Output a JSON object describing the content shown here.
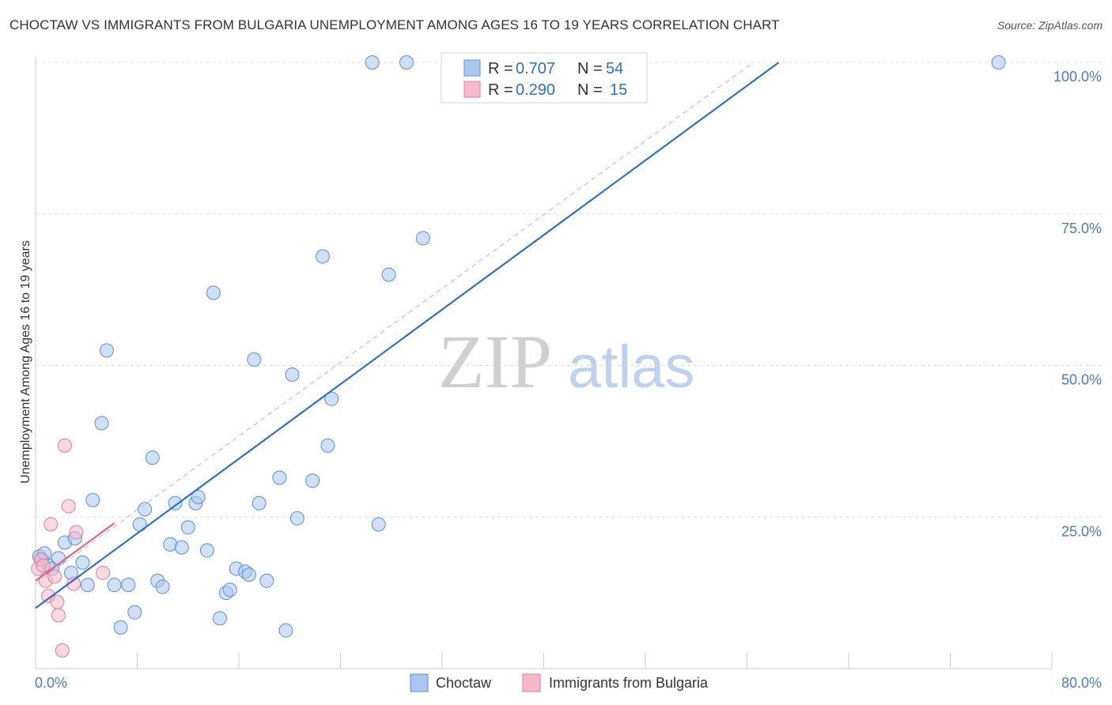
{
  "title": "CHOCTAW VS IMMIGRANTS FROM BULGARIA UNEMPLOYMENT AMONG AGES 16 TO 19 YEARS CORRELATION CHART",
  "source": "Source: ZipAtlas.com",
  "watermark": {
    "zip": "ZIP",
    "atlas": "atlas"
  },
  "legend": {
    "rows": [
      {
        "r_label": "R =",
        "r_value": "0.707",
        "n_label": "N =",
        "n_value": "54"
      },
      {
        "r_label": "R =",
        "r_value": "0.290",
        "n_label": "N =",
        "n_value": "15"
      }
    ]
  },
  "chart_data": {
    "type": "scatter",
    "title": "CHOCTAW VS IMMIGRANTS FROM BULGARIA UNEMPLOYMENT AMONG AGES 16 TO 19 YEARS CORRELATION CHART",
    "xlabel": "",
    "ylabel": "Unemployment Among Ages 16 to 19 years",
    "xlim": [
      0,
      80
    ],
    "ylim": [
      0,
      100
    ],
    "x_tick_labels": [
      "0.0%",
      "80.0%"
    ],
    "y_ticks": [
      25,
      50,
      75,
      100
    ],
    "y_tick_labels": [
      "25.0%",
      "50.0%",
      "75.0%",
      "100.0%"
    ],
    "colors": {
      "choctaw_fill": "#a9c8f0",
      "choctaw_stroke": "#5b8fd6",
      "choctaw_line": "#2f6fcc",
      "bulgaria_fill": "#f7b8ca",
      "bulgaria_stroke": "#e27c9c",
      "bulgaria_line": "#e0628d",
      "axis_label": "#4a7cc4"
    },
    "series": [
      {
        "name": "Choctaw",
        "r": 0.707,
        "n": 54,
        "trend": {
          "x0": 0,
          "y0": 10,
          "x1": 58.5,
          "y1": 100
        },
        "points": [
          [
            0.3,
            18.5
          ],
          [
            0.5,
            18.0
          ],
          [
            0.7,
            19.0
          ],
          [
            1.0,
            17.0
          ],
          [
            1.3,
            16.5
          ],
          [
            1.8,
            18.2
          ],
          [
            2.3,
            20.8
          ],
          [
            2.8,
            15.8
          ],
          [
            3.1,
            21.5
          ],
          [
            3.7,
            17.5
          ],
          [
            4.1,
            13.8
          ],
          [
            4.5,
            27.8
          ],
          [
            5.2,
            40.5
          ],
          [
            5.6,
            52.5
          ],
          [
            6.2,
            13.8
          ],
          [
            6.7,
            6.8
          ],
          [
            7.3,
            13.8
          ],
          [
            7.8,
            9.3
          ],
          [
            8.2,
            23.8
          ],
          [
            8.6,
            26.3
          ],
          [
            9.2,
            34.8
          ],
          [
            9.6,
            14.5
          ],
          [
            10.0,
            13.5
          ],
          [
            10.6,
            20.5
          ],
          [
            11.0,
            27.3
          ],
          [
            11.5,
            20.0
          ],
          [
            12.0,
            23.3
          ],
          [
            12.6,
            27.3
          ],
          [
            12.8,
            28.3
          ],
          [
            13.5,
            19.5
          ],
          [
            14.0,
            62.0
          ],
          [
            14.5,
            8.3
          ],
          [
            15.0,
            12.5
          ],
          [
            15.3,
            13.0
          ],
          [
            15.8,
            16.5
          ],
          [
            16.5,
            16.0
          ],
          [
            16.8,
            15.5
          ],
          [
            17.2,
            51.0
          ],
          [
            17.6,
            27.3
          ],
          [
            18.2,
            14.5
          ],
          [
            19.2,
            31.5
          ],
          [
            19.7,
            6.3
          ],
          [
            20.2,
            48.5
          ],
          [
            20.6,
            24.8
          ],
          [
            21.8,
            31.0
          ],
          [
            22.6,
            68.0
          ],
          [
            23.0,
            36.8
          ],
          [
            23.3,
            44.5
          ],
          [
            26.5,
            100.0
          ],
          [
            27.0,
            23.8
          ],
          [
            27.8,
            65.0
          ],
          [
            29.2,
            100.0
          ],
          [
            30.5,
            71.0
          ],
          [
            75.8,
            100.0
          ]
        ]
      },
      {
        "name": "Immigrants from Bulgaria",
        "r": 0.29,
        "n": 15,
        "trend": {
          "x0": 0,
          "y0": 14.5,
          "x1": 6.2,
          "y1": 24.0
        },
        "points": [
          [
            0.2,
            16.5
          ],
          [
            0.4,
            18.0
          ],
          [
            0.6,
            17.0
          ],
          [
            0.8,
            14.5
          ],
          [
            1.0,
            12.0
          ],
          [
            1.2,
            23.8
          ],
          [
            1.5,
            15.2
          ],
          [
            1.7,
            11.0
          ],
          [
            1.8,
            8.8
          ],
          [
            2.1,
            3.0
          ],
          [
            2.3,
            36.8
          ],
          [
            2.6,
            26.8
          ],
          [
            3.0,
            14.0
          ],
          [
            3.2,
            22.5
          ],
          [
            5.3,
            15.8
          ]
        ]
      }
    ],
    "diagonal_reference": {
      "x0": 0,
      "y0": 14,
      "x1": 56.5,
      "y1": 100
    }
  },
  "bottom_legend": [
    {
      "label": "Choctaw"
    },
    {
      "label": "Immigrants from Bulgaria"
    }
  ]
}
